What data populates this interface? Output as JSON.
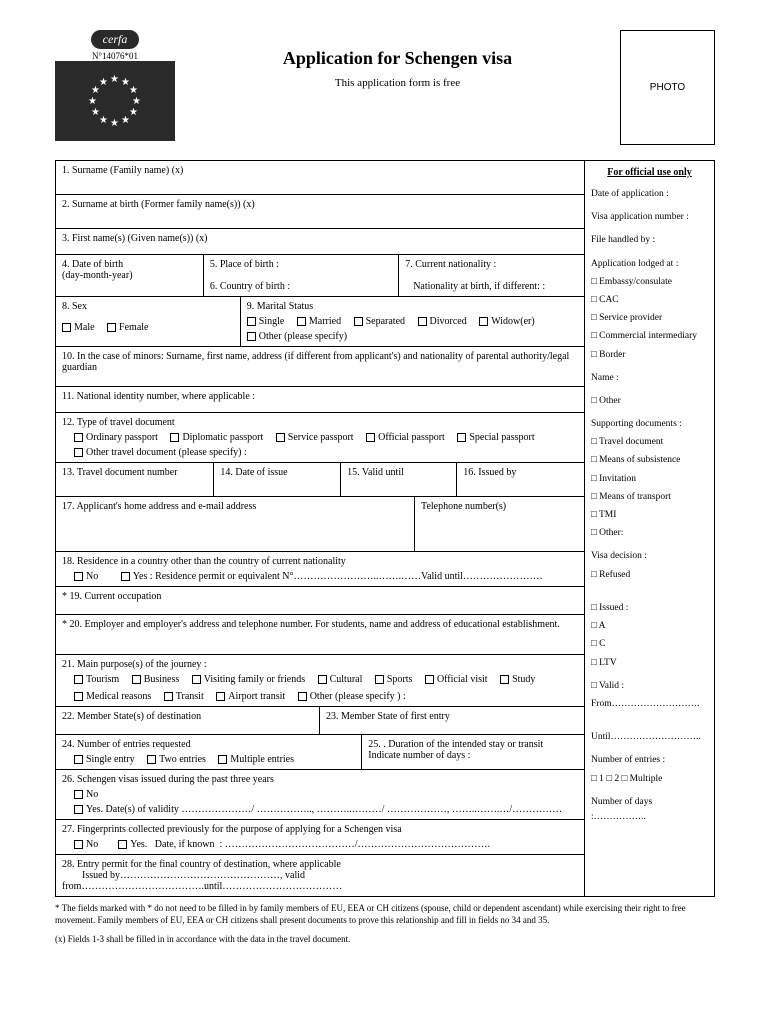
{
  "header": {
    "cerfa_label": "cerfa",
    "cerfa_number": "N°14076*01",
    "title": "Application for Schengen visa",
    "subtitle": "This application form is free",
    "photo_label": "PHOTO"
  },
  "fields": {
    "f1": "1. Surname (Family name) (x)",
    "f2": "2. Surname at birth (Former family name(s)) (x)",
    "f3": "3. First name(s) (Given name(s)) (x)",
    "f4": "4.  Date of birth",
    "f4_sub": "(day-month-year)",
    "f5": "5.  Place of birth :",
    "f6": "6.  Country of birth :",
    "f7": "7.  Current nationality :",
    "f7_sub": "Nationality at birth, if different: :",
    "f8": "8. Sex",
    "f8_male": "Male",
    "f8_female": "Female",
    "f9": "9. Marital Status",
    "f9_single": "Single",
    "f9_married": "Married",
    "f9_separated": "Separated",
    "f9_divorced": "Divorced",
    "f9_widow": "Widow(er)",
    "f9_other": "Other (please specify)",
    "f10": "10. In the case of minors: Surname, first name, address (if different from applicant's) and nationality of parental authority/legal guardian",
    "f11": "11. National identity number, where applicable :",
    "f12": "12. Type of travel document",
    "f12_ordinary": "Ordinary passport",
    "f12_diplomatic": "Diplomatic passport",
    "f12_service": "Service passport",
    "f12_official": "Official passport",
    "f12_special": "Special passport",
    "f12_other": "Other travel document (please specify) :",
    "f13": "13.  Travel document number",
    "f14": "14.  Date of issue",
    "f15": "15. Valid until",
    "f16": "16. Issued by",
    "f17": "17. Applicant's home address and e-mail address",
    "f17_tel": "Telephone number(s)",
    "f18": "18.  Residence in a country other than the country of current nationality",
    "f18_no": "No",
    "f18_yes": "Yes :  Residence permit or equivalent N°……………………..…….……Valid until……………………",
    "f19": "*  19.   Current occupation",
    "f20": "*  20.  Employer and employer's address and telephone number. For students, name and address of educational establishment.",
    "f21": "21.  Main purpose(s) of the journey :",
    "f21_tourism": "Tourism",
    "f21_business": "Business",
    "f21_visiting": "Visiting family or friends",
    "f21_cultural": "Cultural",
    "f21_sports": "Sports",
    "f21_official": "Official visit",
    "f21_study": "Study",
    "f21_medical": "Medical reasons",
    "f21_transit": "Transit",
    "f21_airport": "Airport transit",
    "f21_other": "Other (please specify ) :",
    "f22": "22.  Member State(s) of destination",
    "f23": "23.   Member State of first entry",
    "f24": "24.  Number of entries requested",
    "f24_single": "Single entry",
    "f24_two": "Two entries",
    "f24_multiple": "Multiple entries",
    "f25": "25. . Duration of the intended stay or transit",
    "f25_sub": "Indicate number of days :",
    "f26": "26.  Schengen visas issued during the past three years",
    "f26_no": "No",
    "f26_yes": "Yes. Date(s) of validity …………………/ ……………..,  ………..………/ ………………,   ……..…….…/……………",
    "f27": "27.  Fingerprints collected previously for the purpose of applying for a Schengen visa",
    "f27_line": "No         Yes.    Date, if known  : …………………………………/………………………………….",
    "f27_no": "No",
    "f27_yes": "Yes.",
    "f28": "28.  Entry permit for the final country of destination, where applicable",
    "f28_sub": "Issued by…………………………………………, valid from……………………………….until………………………………"
  },
  "official": {
    "heading": "For official use only",
    "date": "Date of application :",
    "visa_num": "Visa application number :",
    "file_by": "File handled by :",
    "lodged": "Application lodged at :",
    "lodged_opts": [
      "□ Embassy/consulate",
      "□ CAC",
      "□ Service provider",
      "□ Commercial intermediary",
      "□ Border"
    ],
    "name": "Name :",
    "other": "□ Other",
    "supporting": "Supporting documents :",
    "supporting_opts": [
      "□ Travel document",
      "□ Means of subsistence",
      "□ Invitation",
      "□ Means of transport",
      "□ TMI",
      "□ Other:"
    ],
    "decision": "Visa decision :",
    "refused": "□ Refused",
    "issued": "□ Issued :",
    "issued_opts": [
      "□ A",
      "□ C",
      "□ LTV"
    ],
    "valid": "□ Valid :",
    "from": "From……………………….",
    "until": "Until………………………..",
    "entries": "Number of entries :",
    "entries_opts": "□ 1 □ 2 □ Multiple",
    "days": "Number of days :…………….."
  },
  "footnotes": {
    "n1": "* The fields marked with * do not need to be filled in by family members of EU, EEA or CH citizens (spouse, child or dependent ascendant) while exercising their right to free movement. Family members of EU, EEA or CH citizens shall present documents to prove this relationship and fill in fields no 34 and 35.",
    "n2": "(x) Fields 1-3 shall be filled in in accordance with the data in the travel document."
  }
}
